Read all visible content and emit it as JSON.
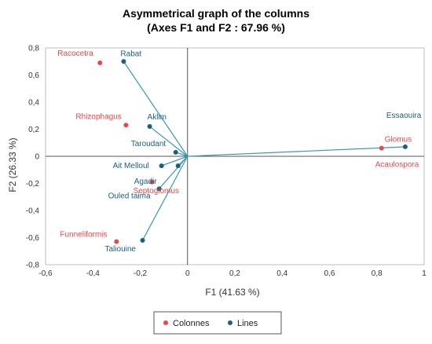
{
  "chart_data": {
    "type": "scatter",
    "title_line1": "Asymmetrical graph of the columns",
    "title_line2": "(Axes F1 and F2 : 67.96 %)",
    "xlabel": "F1 (41.63 %)",
    "ylabel": "F2 (26.33 %)",
    "xlim": [
      -0.6,
      1
    ],
    "ylim": [
      -0.8,
      0.8
    ],
    "x_ticks": [
      -0.6,
      -0.4,
      -0.2,
      0,
      0.2,
      0.4,
      0.6,
      0.8,
      1
    ],
    "y_ticks": [
      -0.8,
      -0.6,
      -0.4,
      -0.2,
      0,
      0.2,
      0.4,
      0.6,
      0.8
    ],
    "x_tick_labels": [
      "-0,6",
      "-0,4",
      "-0,2",
      "0",
      "0,2",
      "0,4",
      "0,6",
      "0,8",
      "1"
    ],
    "y_tick_labels": [
      "-0,8",
      "-0,6",
      "-0,4",
      "-0,2",
      "0",
      "0,2",
      "0,4",
      "0,6",
      "0,8"
    ],
    "grid": false,
    "legend_position": "bottom",
    "colors": {
      "colonnes": "#e8484a",
      "lines": "#1b5f7a",
      "vector": "#3a97b0"
    },
    "series": [
      {
        "name": "Colonnes",
        "points": [
          {
            "label": "Racocetra",
            "x": -0.37,
            "y": 0.69
          },
          {
            "label": "Rhizophagus",
            "x": -0.26,
            "y": 0.23
          },
          {
            "label": "Glomus",
            "x": 0.82,
            "y": 0.06
          },
          {
            "label": "Septoglomus",
            "x": -0.15,
            "y": -0.19
          },
          {
            "label": "Funneliformis",
            "x": -0.3,
            "y": -0.63
          }
        ]
      },
      {
        "name": "Lines",
        "points": [
          {
            "label": "Rabat",
            "x": -0.27,
            "y": 0.7
          },
          {
            "label": "Aklim",
            "x": -0.16,
            "y": 0.22
          },
          {
            "label": "Taroudant",
            "x": -0.05,
            "y": 0.03
          },
          {
            "label": "Essaouira",
            "x": 0.92,
            "y": 0.07
          },
          {
            "label": "Ait Melloul",
            "x": -0.11,
            "y": -0.07
          },
          {
            "label": "Agadir",
            "x": -0.04,
            "y": -0.07
          },
          {
            "label": "Ouled taima",
            "x": -0.12,
            "y": -0.24
          },
          {
            "label": "Taliouine",
            "x": -0.19,
            "y": -0.62
          }
        ]
      }
    ],
    "annotations": [
      {
        "text": "Acaulospora"
      }
    ]
  }
}
